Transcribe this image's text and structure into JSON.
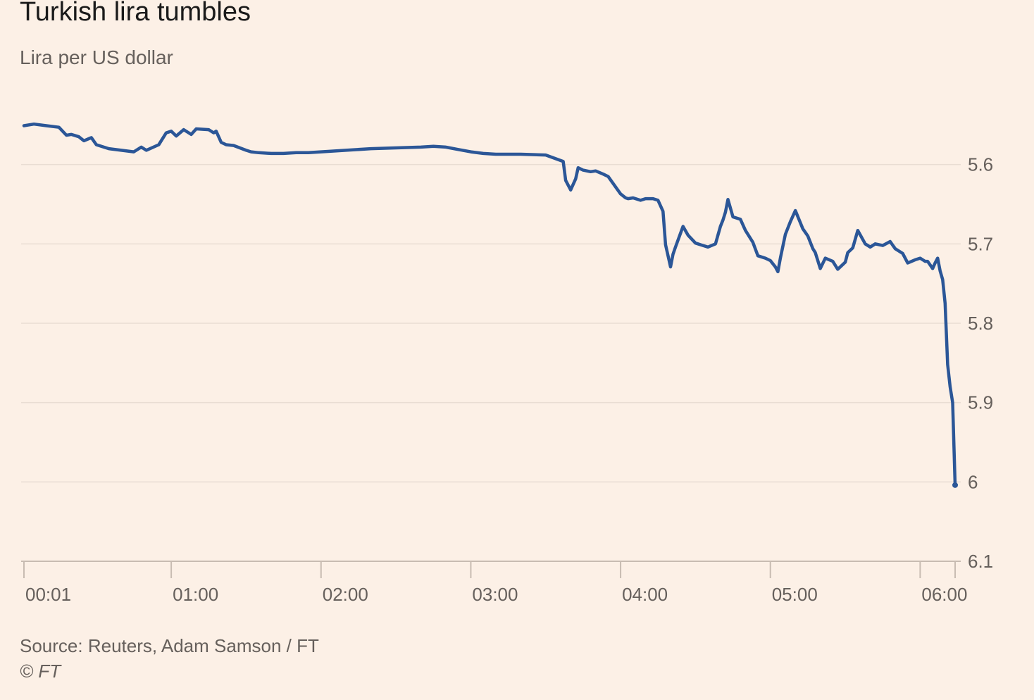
{
  "title": "Turkish lira tumbles",
  "subtitle": "Lira per US dollar",
  "source": "Source: Reuters, Adam Samson / FT",
  "credit": "© FT",
  "colors": {
    "background": "#fcf0e6",
    "line": "#2b5697",
    "grid": "#e9ddd3",
    "axis": "#c8bcb2",
    "text": "#66605c",
    "title": "#1a1a1a"
  },
  "chart_data": {
    "type": "line",
    "title": "Turkish lira tumbles",
    "subtitle": "Lira per US dollar",
    "xlabel": "",
    "ylabel": "",
    "y_inverted": true,
    "y_axis_position": "right",
    "grid": true,
    "ylim": [
      5.5,
      6.1
    ],
    "yticks": [
      5.6,
      5.7,
      5.8,
      5.9,
      6.0,
      6.1
    ],
    "ytick_labels": [
      "5.6",
      "5.7",
      "5.8",
      "5.9",
      "6",
      "6.1"
    ],
    "xlim": [
      "00:01",
      "06:14"
    ],
    "xticks": [
      "00:01",
      "01:00",
      "02:00",
      "03:00",
      "04:00",
      "05:00",
      "06:00"
    ],
    "xtick_labels": [
      "00:01",
      "01:00",
      "02:00",
      "03:00",
      "04:00",
      "05:00",
      "06:00"
    ],
    "series": [
      {
        "color": "#2b5697",
        "x": [
          "00:01",
          "00:05",
          "00:10",
          "00:15",
          "00:18",
          "00:20",
          "00:23",
          "00:25",
          "00:28",
          "00:30",
          "00:33",
          "00:35",
          "00:40",
          "00:45",
          "00:48",
          "00:50",
          "00:55",
          "00:58",
          "01:00",
          "01:02",
          "01:05",
          "01:08",
          "01:10",
          "01:15",
          "01:17",
          "01:18",
          "01:20",
          "01:22",
          "01:25",
          "01:30",
          "01:32",
          "01:35",
          "01:40",
          "01:45",
          "01:50",
          "01:55",
          "02:00",
          "02:10",
          "02:20",
          "02:30",
          "02:40",
          "02:45",
          "02:50",
          "02:55",
          "03:00",
          "03:05",
          "03:10",
          "03:20",
          "03:30",
          "03:37",
          "03:38",
          "03:40",
          "03:42",
          "03:43",
          "03:45",
          "03:48",
          "03:50",
          "03:53",
          "03:55",
          "04:00",
          "04:02",
          "04:03",
          "04:05",
          "04:08",
          "04:10",
          "04:13",
          "04:15",
          "04:17",
          "04:18",
          "04:20",
          "04:21",
          "04:22",
          "04:25",
          "04:27",
          "04:30",
          "04:33",
          "04:35",
          "04:38",
          "04:40",
          "04:41",
          "04:42",
          "04:43",
          "04:45",
          "04:48",
          "04:50",
          "04:53",
          "04:55",
          "04:58",
          "05:00",
          "05:02",
          "05:03",
          "05:04",
          "05:06",
          "05:08",
          "05:10",
          "05:13",
          "05:15",
          "05:17",
          "05:18",
          "05:20",
          "05:22",
          "05:25",
          "05:27",
          "05:30",
          "05:31",
          "05:33",
          "05:35",
          "05:38",
          "05:40",
          "05:42",
          "05:45",
          "05:48",
          "05:50",
          "05:53",
          "05:55",
          "05:58",
          "06:00",
          "06:02",
          "06:03",
          "06:05",
          "06:06",
          "06:07",
          "06:08",
          "06:09",
          "06:10",
          "06:11",
          "06:12",
          "06:13",
          "06:14"
        ],
        "values": [
          5.551,
          5.549,
          5.551,
          5.553,
          5.563,
          5.562,
          5.565,
          5.57,
          5.566,
          5.575,
          5.578,
          5.58,
          5.582,
          5.584,
          5.578,
          5.582,
          5.575,
          5.56,
          5.558,
          5.564,
          5.556,
          5.562,
          5.555,
          5.556,
          5.56,
          5.558,
          5.572,
          5.575,
          5.576,
          5.582,
          5.584,
          5.585,
          5.586,
          5.586,
          5.585,
          5.585,
          5.584,
          5.582,
          5.58,
          5.579,
          5.578,
          5.577,
          5.578,
          5.581,
          5.584,
          5.586,
          5.587,
          5.587,
          5.588,
          5.596,
          5.62,
          5.632,
          5.618,
          5.604,
          5.607,
          5.609,
          5.608,
          5.612,
          5.615,
          5.637,
          5.642,
          5.643,
          5.642,
          5.645,
          5.643,
          5.643,
          5.645,
          5.659,
          5.701,
          5.729,
          5.713,
          5.704,
          5.678,
          5.689,
          5.699,
          5.702,
          5.704,
          5.7,
          5.678,
          5.67,
          5.66,
          5.644,
          5.666,
          5.669,
          5.683,
          5.698,
          5.715,
          5.718,
          5.721,
          5.729,
          5.735,
          5.718,
          5.688,
          5.672,
          5.658,
          5.681,
          5.69,
          5.706,
          5.711,
          5.731,
          5.718,
          5.722,
          5.732,
          5.723,
          5.711,
          5.705,
          5.683,
          5.7,
          5.704,
          5.7,
          5.702,
          5.697,
          5.706,
          5.712,
          5.724,
          5.72,
          5.718,
          5.722,
          5.722,
          5.731,
          5.724,
          5.718,
          5.734,
          5.745,
          5.775,
          5.852,
          5.88,
          5.9,
          6.004
        ]
      }
    ]
  }
}
